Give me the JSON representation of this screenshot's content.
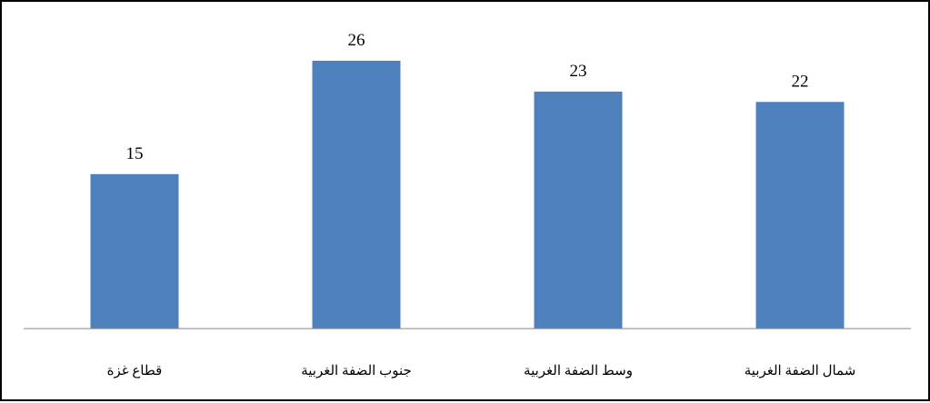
{
  "chart_data": {
    "type": "bar",
    "categories": [
      "قطاع غزة",
      "جنوب الضفة الغربية",
      "وسط الضفة الغربية",
      "شمال الضفة الغربية"
    ],
    "values": [
      15,
      26,
      23,
      22
    ],
    "data_labels": [
      "15",
      "26",
      "23",
      "22"
    ],
    "title": "",
    "xlabel": "",
    "ylabel": "",
    "ylim": [
      0,
      28
    ],
    "grid": false,
    "legend": "none",
    "bar_color": "#4F81BD",
    "axis_color": "#868686"
  }
}
